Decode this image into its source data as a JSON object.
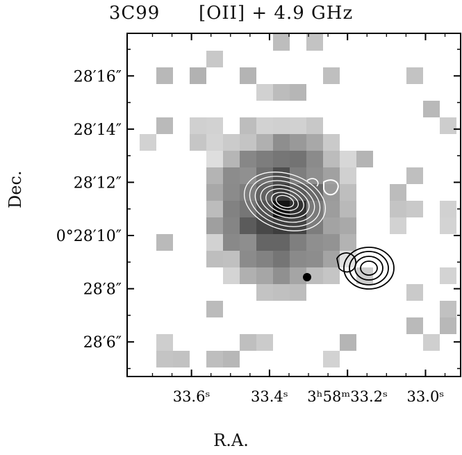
{
  "figure": {
    "title_source": "3C99",
    "title_band": "[OII] + 4.9 GHz",
    "ylabel": "Dec.",
    "xlabel": "R.A."
  },
  "chart_data": {
    "type": "heatmap",
    "xlabel": "R.A.",
    "ylabel": "Dec.",
    "x_ticks": [
      {
        "value": 33.6,
        "label": "33.6ˢ"
      },
      {
        "value": 33.4,
        "label": "33.4ˢ"
      },
      {
        "value": 33.2,
        "label": "3ʰ58ᵐ33.2ˢ"
      },
      {
        "value": 33.0,
        "label": "33.0ˢ"
      }
    ],
    "y_ticks": [
      {
        "value": 16,
        "label": "28′16″"
      },
      {
        "value": 14,
        "label": "28′14″"
      },
      {
        "value": 12,
        "label": "28′12″"
      },
      {
        "value": 10,
        "label": "0°28′10″"
      },
      {
        "value": 8,
        "label": "28′8″"
      },
      {
        "value": 6,
        "label": "28′6″"
      }
    ],
    "xlim": [
      33.765,
      32.91
    ],
    "ylim": [
      4.7,
      17.6
    ],
    "grid": false
  }
}
